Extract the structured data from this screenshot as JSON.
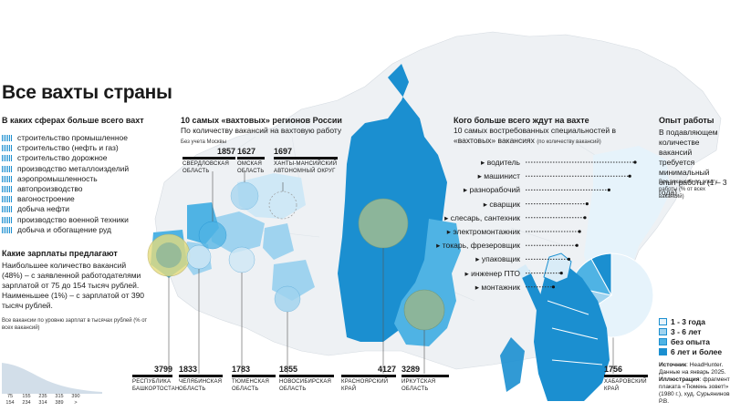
{
  "title": "Все вахты страны",
  "spheres": {
    "heading": "В каких сферах больше всего вахт",
    "items": [
      "строительство промышленное",
      "строительство (нефть и газ)",
      "строительство дорожное",
      "производство металлоизделий",
      "аэропромышленность",
      "автопроизводство",
      "вагоностроение",
      "добыча нефти",
      "производство военной техники",
      "добыча и обогащение руд"
    ]
  },
  "salary": {
    "heading": "Какие зарплаты предлагают",
    "text": "Наибольшее количество вакансий (48%) – с заявленной работодателями зарплатой от 75 до 154 тысяч рублей. Наименьшее (1%) – с зарплатой от 390 тысяч рублей.",
    "note": "Все вакансии по уровню зарплат в тысячах рублей (% от всех вакансий)",
    "ticks_top": [
      "75",
      "155",
      "235",
      "315",
      "390"
    ],
    "ticks_bottom": [
      "154",
      "234",
      "314",
      "389",
      ">"
    ]
  },
  "regions_block": {
    "heading": "10 самых «вахтовых» регионов России",
    "sub": "По количеству вакансий на вахтовую работу",
    "note": "Без учета Москвы"
  },
  "regions": [
    {
      "value": "1857",
      "name": "СВЕРДЛОВСКАЯ ОБЛАСТЬ"
    },
    {
      "value": "1627",
      "name": "ОМСКАЯ ОБЛАСТЬ"
    },
    {
      "value": "1697",
      "name": "ХАНТЫ-МАНСИЙСКИЙ АВТОНОМНЫЙ ОКРУГ"
    },
    {
      "value": "3799",
      "name": "РЕСПУБЛИКА БАШКОРТОСТАН"
    },
    {
      "value": "1833",
      "name": "ЧЕЛЯБИНСКАЯ ОБЛАСТЬ"
    },
    {
      "value": "1783",
      "name": "ТЮМЕНСКАЯ ОБЛАСТЬ"
    },
    {
      "value": "1855",
      "name": "НОВОСИБИРСКАЯ ОБЛАСТЬ"
    },
    {
      "value": "4127",
      "name": "КРАСНОЯРСКИЙ КРАЙ"
    },
    {
      "value": "3289",
      "name": "ИРКУТСКАЯ ОБЛАСТЬ"
    },
    {
      "value": "1756",
      "name": "ХАБАРОВСКИЙ КРАЙ"
    }
  ],
  "professions": {
    "heading": "Кого больше всего ждут на вахте",
    "sub": "10 самых востребованных специальностей в «вахтовых» вакансиях",
    "sub_note": "(по количеству вакансий)",
    "items": [
      "водитель",
      "машинист",
      "разнорабочий",
      "сварщик",
      "слесарь, сантехник",
      "электромонтажник",
      "токарь, фрезеровщик",
      "упаковщик",
      "инженер ПТО",
      "монтажник"
    ],
    "counts": [
      2050,
      1950,
      1560,
      1150,
      1110,
      1010,
      960,
      810,
      670,
      520
    ]
  },
  "experience": {
    "heading": "Опыт работы",
    "text": "В подавляющем количестве вакансий требуется минимальный опыт работы (1 – 3 года).",
    "note": "Все вакансии по опыту работы (% от всех вакансий)",
    "legend": [
      "1 - 3 года",
      "3 - 6 лет",
      "без опыта",
      "6 лет и более"
    ],
    "colors": [
      "#e6f3fb",
      "#9fd3ef",
      "#4fb3e4",
      "#1b8fd0"
    ]
  },
  "source": {
    "label": "Источник",
    "text": ": HeadHunter. Данные на январь 2025.",
    "ill_label": "Иллюстрация",
    "ill_text": ": фрагмент плаката «Тюмень зовет!» (1980 г.), худ. Сурьянинов Р.В."
  },
  "colors": {
    "accent": "#1b8fd0",
    "circle_green": "#8cb59a",
    "circle_yellow": "#e6dc7d"
  }
}
